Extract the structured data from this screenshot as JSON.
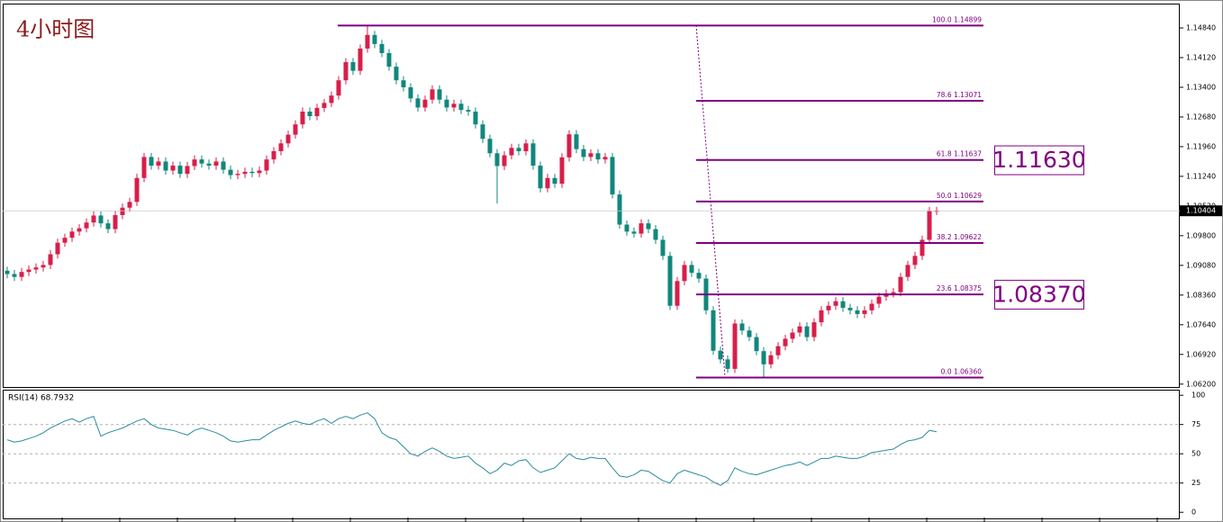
{
  "chart_data": [
    {
      "type": "candlestick",
      "title": "4小时图",
      "open": [
        1.0895,
        1.0887,
        1.088,
        1.0892,
        1.0898,
        1.0903,
        1.0909,
        1.0935,
        1.0963,
        1.0975,
        1.099,
        1.0998,
        1.1012,
        1.1029,
        1.101,
        1.0996,
        1.103,
        1.1048,
        1.1062,
        1.112,
        1.1171,
        1.115,
        1.116,
        1.1138,
        1.115,
        1.113,
        1.1149,
        1.1165,
        1.1155,
        1.115,
        1.116,
        1.114,
        1.1127,
        1.113,
        1.1135,
        1.1132,
        1.1138,
        1.1165,
        1.1185,
        1.1204,
        1.1225,
        1.125,
        1.1281,
        1.127,
        1.129,
        1.1302,
        1.132,
        1.1357,
        1.1401,
        1.138,
        1.1434,
        1.1467,
        1.1445,
        1.1423,
        1.139,
        1.1357,
        1.134,
        1.1313,
        1.1291,
        1.131,
        1.1335,
        1.131,
        1.1291,
        1.13,
        1.1285,
        1.1281,
        1.125,
        1.1215,
        1.118,
        1.1149,
        1.1175,
        1.1193,
        1.1185,
        1.1204,
        1.115,
        1.1095,
        1.112,
        1.1106,
        1.117,
        1.1226,
        1.119,
        1.1171,
        1.118,
        1.1165,
        1.1171,
        1.108,
        1.1007,
        1.099,
        1.0985,
        1.101,
        1.0996,
        1.097,
        1.0931,
        1.081,
        1.087,
        1.0909,
        1.089,
        1.0876,
        1.0799,
        1.0701,
        1.068,
        1.0657,
        1.0767,
        1.075,
        1.0734,
        1.07,
        1.0668,
        1.069,
        1.0712,
        1.073,
        1.0745,
        1.076,
        1.0734,
        1.077,
        1.0799,
        1.081,
        1.0821,
        1.0805,
        1.0799,
        1.079,
        1.0799,
        1.0815,
        1.0832,
        1.084,
        1.0843,
        1.088,
        1.0909,
        1.0931,
        1.097,
        1.104
      ],
      "high": [
        1.0905,
        1.0897,
        1.0902,
        1.0908,
        1.0913,
        1.0919,
        1.0945,
        1.0973,
        1.0985,
        1.1,
        1.1008,
        1.1022,
        1.1039,
        1.1039,
        1.102,
        1.104,
        1.1058,
        1.1072,
        1.113,
        1.1181,
        1.1181,
        1.117,
        1.117,
        1.116,
        1.116,
        1.1159,
        1.1175,
        1.1175,
        1.1165,
        1.117,
        1.117,
        1.115,
        1.114,
        1.1145,
        1.1145,
        1.1148,
        1.1175,
        1.1195,
        1.1214,
        1.1235,
        1.126,
        1.1291,
        1.1291,
        1.13,
        1.1312,
        1.133,
        1.1367,
        1.1411,
        1.1411,
        1.1444,
        1.149,
        1.1477,
        1.1455,
        1.1433,
        1.14,
        1.1367,
        1.135,
        1.1323,
        1.132,
        1.1345,
        1.1345,
        1.132,
        1.131,
        1.131,
        1.1295,
        1.1291,
        1.126,
        1.1225,
        1.119,
        1.1185,
        1.1203,
        1.1203,
        1.1214,
        1.1214,
        1.116,
        1.113,
        1.113,
        1.118,
        1.1236,
        1.1236,
        1.12,
        1.119,
        1.119,
        1.1181,
        1.1181,
        1.109,
        1.1017,
        1.1,
        1.102,
        1.102,
        1.1006,
        1.098,
        1.0941,
        1.088,
        1.0919,
        1.0919,
        1.09,
        1.0886,
        1.0809,
        1.0711,
        1.069,
        1.0777,
        1.0777,
        1.076,
        1.0744,
        1.071,
        1.07,
        1.0722,
        1.074,
        1.0755,
        1.077,
        1.077,
        1.078,
        1.0809,
        1.082,
        1.0831,
        1.0831,
        1.0815,
        1.0809,
        1.0809,
        1.0825,
        1.0842,
        1.085,
        1.0853,
        1.089,
        1.0919,
        1.0941,
        1.098,
        1.105,
        1.105
      ],
      "low": [
        1.0877,
        1.087,
        1.087,
        1.0882,
        1.0888,
        1.0893,
        1.0899,
        1.0925,
        1.0953,
        1.0965,
        1.098,
        1.0988,
        1.1002,
        1.1,
        1.0986,
        1.0986,
        1.102,
        1.1038,
        1.1052,
        1.111,
        1.114,
        1.114,
        1.1128,
        1.1128,
        1.112,
        1.112,
        1.1139,
        1.1145,
        1.114,
        1.114,
        1.113,
        1.1117,
        1.1117,
        1.112,
        1.1122,
        1.1122,
        1.1128,
        1.1155,
        1.1175,
        1.1194,
        1.1215,
        1.124,
        1.126,
        1.126,
        1.128,
        1.1292,
        1.131,
        1.1347,
        1.137,
        1.137,
        1.1424,
        1.1435,
        1.1413,
        1.138,
        1.1347,
        1.133,
        1.1303,
        1.1281,
        1.1281,
        1.13,
        1.13,
        1.1281,
        1.1281,
        1.1275,
        1.1271,
        1.124,
        1.1205,
        1.117,
        1.1058,
        1.1139,
        1.1165,
        1.1175,
        1.1175,
        1.114,
        1.1085,
        1.1085,
        1.1096,
        1.1096,
        1.116,
        1.118,
        1.1161,
        1.1161,
        1.1155,
        1.1155,
        1.107,
        1.0997,
        1.098,
        1.0975,
        1.0975,
        1.0986,
        1.096,
        1.0921,
        1.08,
        1.08,
        1.086,
        1.088,
        1.0866,
        1.0789,
        1.0691,
        1.067,
        1.0647,
        1.0647,
        1.074,
        1.0724,
        1.069,
        1.0636,
        1.0658,
        1.068,
        1.0702,
        1.072,
        1.0735,
        1.0724,
        1.0724,
        1.076,
        1.0789,
        1.08,
        1.0795,
        1.0789,
        1.078,
        1.078,
        1.0789,
        1.0805,
        1.0822,
        1.083,
        1.0833,
        1.087,
        1.0899,
        1.0921,
        1.096,
        1.103
      ],
      "close": [
        1.0887,
        1.088,
        1.0892,
        1.0898,
        1.0903,
        1.0909,
        1.0935,
        1.0963,
        1.0975,
        1.099,
        1.0998,
        1.1012,
        1.1029,
        1.101,
        1.0996,
        1.103,
        1.1048,
        1.1062,
        1.112,
        1.1171,
        1.115,
        1.116,
        1.1138,
        1.115,
        1.113,
        1.1149,
        1.1165,
        1.1155,
        1.115,
        1.116,
        1.114,
        1.1127,
        1.113,
        1.1135,
        1.1132,
        1.1138,
        1.1165,
        1.1185,
        1.1204,
        1.1225,
        1.125,
        1.1281,
        1.127,
        1.129,
        1.1302,
        1.132,
        1.1357,
        1.1401,
        1.138,
        1.1434,
        1.1467,
        1.1445,
        1.1423,
        1.139,
        1.1357,
        1.134,
        1.1313,
        1.1291,
        1.131,
        1.1335,
        1.131,
        1.1291,
        1.13,
        1.1285,
        1.1281,
        1.125,
        1.1215,
        1.118,
        1.1149,
        1.1175,
        1.1193,
        1.1185,
        1.1204,
        1.115,
        1.1095,
        1.112,
        1.1106,
        1.117,
        1.1226,
        1.119,
        1.1171,
        1.118,
        1.1165,
        1.1171,
        1.108,
        1.1007,
        1.099,
        1.0985,
        1.101,
        1.0996,
        1.097,
        1.0931,
        1.081,
        1.087,
        1.0909,
        1.089,
        1.0876,
        1.0799,
        1.0701,
        1.068,
        1.0657,
        1.0767,
        1.075,
        1.0734,
        1.07,
        1.0668,
        1.069,
        1.0712,
        1.073,
        1.0745,
        1.076,
        1.0734,
        1.077,
        1.0799,
        1.081,
        1.0821,
        1.0805,
        1.0799,
        1.079,
        1.0799,
        1.0815,
        1.0832,
        1.084,
        1.0843,
        1.088,
        1.0909,
        1.0931,
        1.097,
        1.104,
        1.10404
      ],
      "up_color": "#d81e4a",
      "down_color": "#10877c",
      "ylim": [
        1.0613,
        1.1543
      ],
      "yticks": [
        {
          "value": 1.1484,
          "label": "1.14840"
        },
        {
          "value": 1.1412,
          "label": "1.14120"
        },
        {
          "value": 1.134,
          "label": "1.13400"
        },
        {
          "value": 1.1268,
          "label": "1.12680"
        },
        {
          "value": 1.1196,
          "label": "1.11960"
        },
        {
          "value": 1.1124,
          "label": "1.11240"
        },
        {
          "value": 1.1052,
          "label": "1.10520"
        },
        {
          "value": 1.098,
          "label": "1.09800"
        },
        {
          "value": 1.0908,
          "label": "1.09080"
        },
        {
          "value": 1.0836,
          "label": "1.08360"
        },
        {
          "value": 1.0764,
          "label": "1.07640"
        },
        {
          "value": 1.0692,
          "label": "1.06920"
        },
        {
          "value": 1.062,
          "label": "1.06200"
        }
      ],
      "last_price": {
        "value": 1.10404,
        "label": "1.10404"
      },
      "fib_color": "#800080",
      "fib_levels": [
        {
          "label": "100.0  1.14899",
          "value": 1.14899
        },
        {
          "label": "78.6  1.13071",
          "value": 1.13071
        },
        {
          "label": "61.8  1.11637",
          "value": 1.11637
        },
        {
          "label": "50.0  1.10629",
          "value": 1.10629
        },
        {
          "label": "38.2  1.09622",
          "value": 1.09622
        },
        {
          "label": "23.6  1.08375",
          "value": 1.08375
        },
        {
          "label": "0.0  1.06360",
          "value": 1.0636
        }
      ],
      "annotations": [
        {
          "label": "1.11630",
          "value": 1.1163
        },
        {
          "label": "1.08370",
          "value": 1.0837
        }
      ]
    },
    {
      "type": "line",
      "name": "RSI(14) 68.7932",
      "color": "#2a8c9c",
      "values": [
        62,
        60,
        61,
        63,
        65,
        68,
        72,
        75,
        78,
        80,
        77,
        80,
        82,
        65,
        68,
        70,
        72,
        75,
        78,
        80,
        75,
        72,
        71,
        70,
        68,
        66,
        70,
        72,
        70,
        68,
        65,
        61,
        60,
        61,
        62,
        62,
        66,
        70,
        73,
        76,
        78,
        76,
        75,
        78,
        80,
        76,
        80,
        82,
        80,
        83,
        85,
        80,
        68,
        64,
        62,
        56,
        50,
        48,
        52,
        55,
        52,
        48,
        46,
        47,
        48,
        42,
        38,
        33,
        36,
        42,
        40,
        44,
        45,
        38,
        34,
        36,
        38,
        44,
        50,
        46,
        45,
        47,
        46,
        46,
        38,
        31,
        30,
        32,
        36,
        35,
        31,
        27,
        25,
        33,
        36,
        34,
        32,
        30,
        26,
        23,
        27,
        38,
        35,
        33,
        32,
        34,
        36,
        38,
        40,
        41,
        43,
        40,
        43,
        46,
        46,
        48,
        47,
        46,
        46,
        48,
        51,
        52,
        53,
        54,
        58,
        61,
        62,
        64,
        70,
        68.7932
      ],
      "ylim": [
        -6,
        104
      ],
      "yticks": [
        100,
        75,
        50,
        25,
        0
      ]
    }
  ]
}
